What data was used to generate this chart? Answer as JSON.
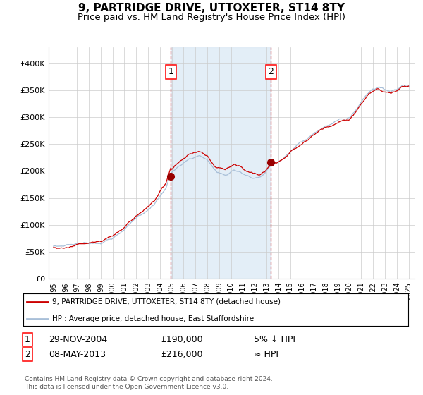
{
  "title": "9, PARTRIDGE DRIVE, UTTOXETER, ST14 8TY",
  "subtitle": "Price paid vs. HM Land Registry's House Price Index (HPI)",
  "title_fontsize": 11,
  "subtitle_fontsize": 9.5,
  "hpi_color": "#a8bfd8",
  "price_color": "#cc0000",
  "marker_color": "#990000",
  "background_color": "#ffffff",
  "plot_bg_color": "#ffffff",
  "grid_color": "#cccccc",
  "yticks": [
    0,
    50000,
    100000,
    150000,
    200000,
    250000,
    300000,
    350000,
    400000
  ],
  "ytick_labels": [
    "£0",
    "£50K",
    "£100K",
    "£150K",
    "£200K",
    "£250K",
    "£300K",
    "£350K",
    "£400K"
  ],
  "ylim": [
    0,
    430000
  ],
  "xlim_start": 1994.6,
  "xlim_end": 2025.5,
  "purchase1_date": 2004.91,
  "purchase1_price": 190000,
  "purchase1_label": "1",
  "purchase2_date": 2013.36,
  "purchase2_price": 216000,
  "purchase2_label": "2",
  "shade_start": 2004.91,
  "shade_end": 2013.36,
  "shade_color": "#ddeaf5",
  "legend_label1": "9, PARTRIDGE DRIVE, UTTOXETER, ST14 8TY (detached house)",
  "legend_label2": "HPI: Average price, detached house, East Staffordshire",
  "legend_color1": "#cc0000",
  "legend_color2": "#a8bfd8",
  "ann1_num": "1",
  "ann1_date": "29-NOV-2004",
  "ann1_price": "£190,000",
  "ann1_rel": "5% ↓ HPI",
  "ann2_num": "2",
  "ann2_date": "08-MAY-2013",
  "ann2_price": "£216,000",
  "ann2_rel": "≈ HPI",
  "footer": "Contains HM Land Registry data © Crown copyright and database right 2024.\nThis data is licensed under the Open Government Licence v3.0.",
  "xticks": [
    1995,
    1996,
    1997,
    1998,
    1999,
    2000,
    2001,
    2002,
    2003,
    2004,
    2005,
    2006,
    2007,
    2008,
    2009,
    2010,
    2011,
    2012,
    2013,
    2014,
    2015,
    2016,
    2017,
    2018,
    2019,
    2020,
    2021,
    2022,
    2023,
    2024,
    2025
  ]
}
